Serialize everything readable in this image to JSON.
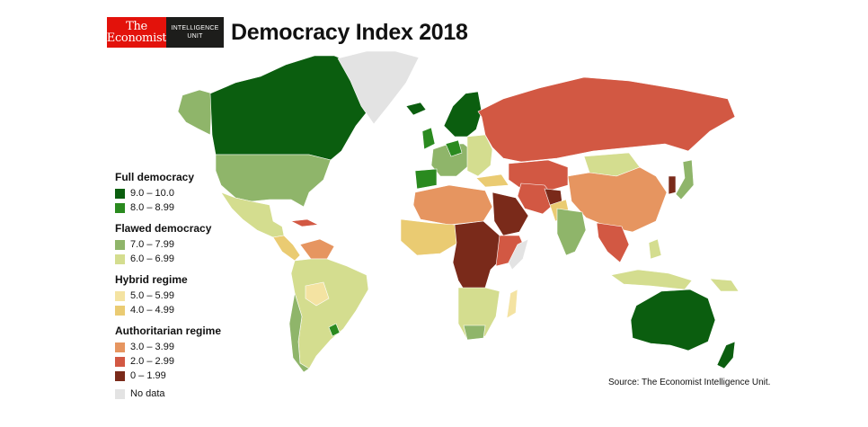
{
  "header": {
    "logo_line1": "The",
    "logo_line2": "Economist",
    "logo_sub1": "INTELLIGENCE",
    "logo_sub2": "UNIT",
    "title": "Democracy Index 2018"
  },
  "legend": {
    "full": {
      "heading": "Full democracy",
      "items": [
        {
          "label": "9.0 – 10.0",
          "color": "#0b5e0f"
        },
        {
          "label": "8.0 – 8.99",
          "color": "#2a8a1f"
        }
      ]
    },
    "flawed": {
      "heading": "Flawed democracy",
      "items": [
        {
          "label": "7.0 – 7.99",
          "color": "#8fb56a"
        },
        {
          "label": "6.0 – 6.99",
          "color": "#d4dd8f"
        }
      ]
    },
    "hybrid": {
      "heading": "Hybrid regime",
      "items": [
        {
          "label": "5.0 – 5.99",
          "color": "#f4e3a2"
        },
        {
          "label": "4.0 – 4.99",
          "color": "#eacb72"
        }
      ]
    },
    "auth": {
      "heading": "Authoritarian regime",
      "items": [
        {
          "label": "3.0 – 3.99",
          "color": "#e69560"
        },
        {
          "label": "2.0 – 2.99",
          "color": "#d25843"
        },
        {
          "label": "0 – 1.99",
          "color": "#7a2a1a"
        }
      ]
    },
    "nodata": {
      "label": "No data",
      "color": "#e3e3e3"
    }
  },
  "source": "Source: The Economist Intelligence Unit."
}
